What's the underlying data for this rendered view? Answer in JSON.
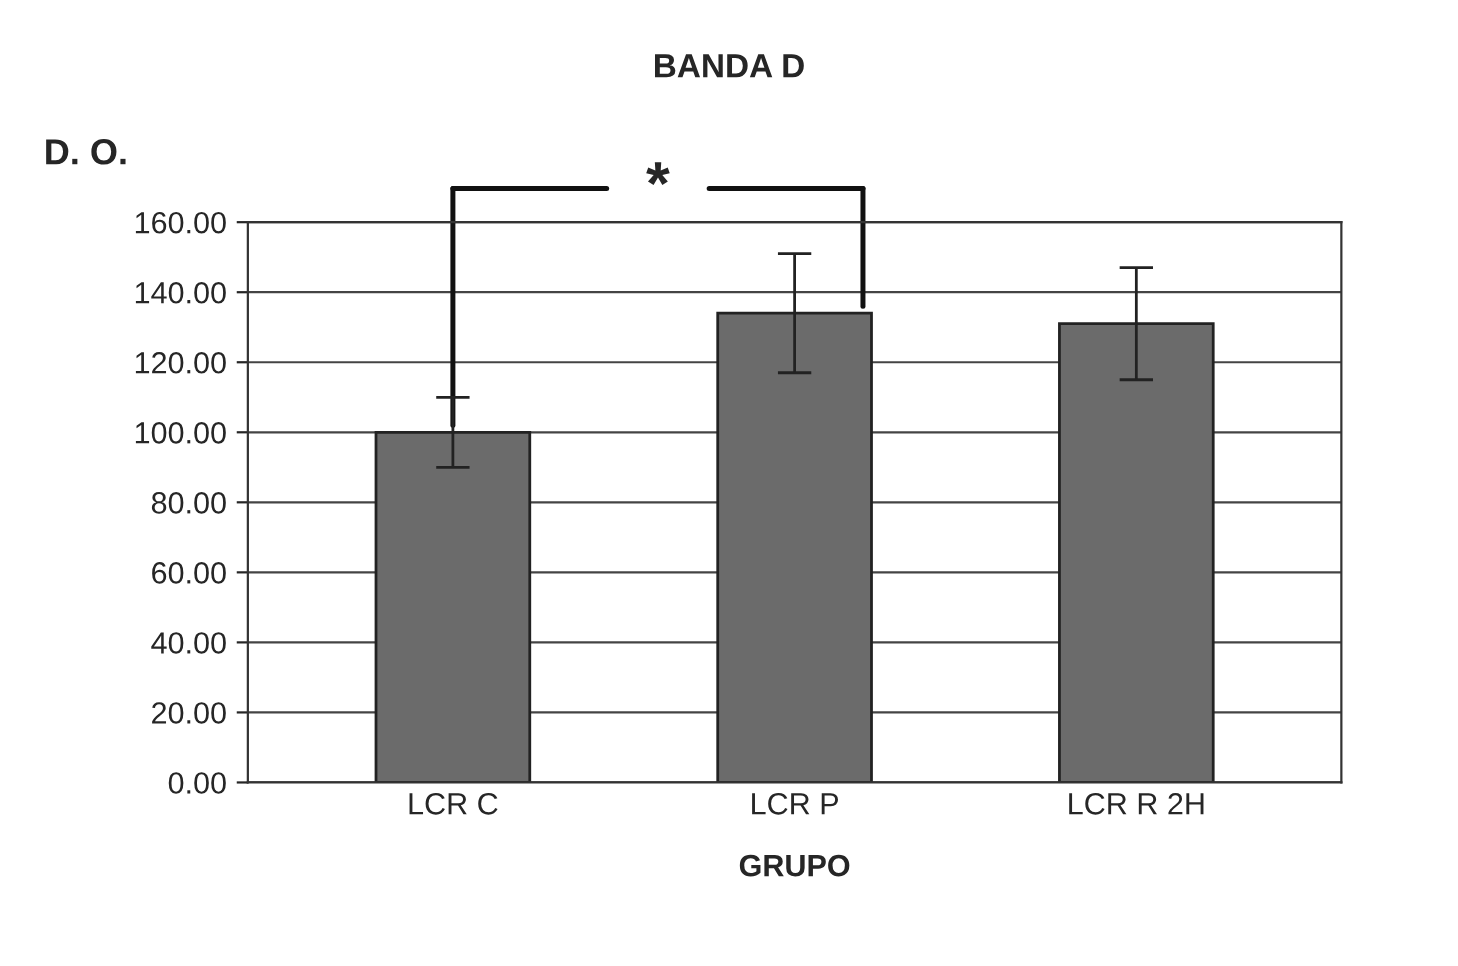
{
  "chart_data": {
    "type": "bar",
    "title": "BANDA D",
    "ylabel": "D. O.",
    "xlabel": "GRUPO",
    "categories": [
      "LCR C",
      "LCR P",
      "LCR R 2H"
    ],
    "values": [
      100,
      134,
      131
    ],
    "errors": [
      10,
      17,
      16
    ],
    "color": "#6b6b6b",
    "ylim": [
      0,
      160
    ],
    "yticks": [
      {
        "value": 0,
        "label": "0.00"
      },
      {
        "value": 20,
        "label": "20.00"
      },
      {
        "value": 40,
        "label": "40.00"
      },
      {
        "value": 60,
        "label": "60.00"
      },
      {
        "value": 80,
        "label": "80.00"
      },
      {
        "value": 100,
        "label": "100.00"
      },
      {
        "value": 120,
        "label": "120.00"
      },
      {
        "value": 140,
        "label": "140.00"
      },
      {
        "value": 160,
        "label": "160.00"
      }
    ],
    "grid": "y",
    "legend": false,
    "annotations": [
      "*"
    ]
  }
}
